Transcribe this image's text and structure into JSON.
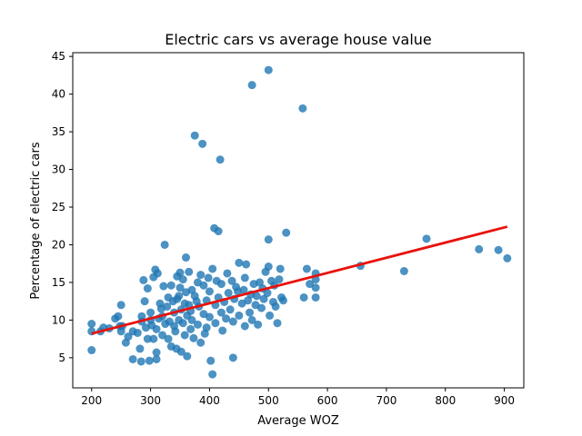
{
  "chart_data": {
    "type": "scatter",
    "title": "Electric cars vs average house value",
    "xlabel": "Average WOZ",
    "ylabel": "Percentage of electric cars",
    "xlim": [
      168,
      933
    ],
    "ylim": [
      1.0,
      45.5
    ],
    "x_ticks": [
      200,
      300,
      400,
      500,
      600,
      700,
      800,
      900
    ],
    "y_ticks": [
      5,
      10,
      15,
      20,
      25,
      30,
      35,
      40,
      45
    ],
    "grid": false,
    "legend": "none",
    "colors": {
      "points": "#1f77b4",
      "trend": "#e8120c"
    },
    "trend_line": {
      "x": [
        200,
        905
      ],
      "y": [
        8.2,
        22.4
      ]
    },
    "points": [
      [
        200,
        8.5
      ],
      [
        200,
        9.5
      ],
      [
        200,
        6.0
      ],
      [
        215,
        8.5
      ],
      [
        220,
        9.0
      ],
      [
        230,
        8.9
      ],
      [
        240,
        10.2
      ],
      [
        245,
        10.5
      ],
      [
        248,
        9.2
      ],
      [
        250,
        12.0
      ],
      [
        250,
        8.5
      ],
      [
        252,
        9.2
      ],
      [
        258,
        7.0
      ],
      [
        262,
        7.8
      ],
      [
        270,
        8.5
      ],
      [
        270,
        4.8
      ],
      [
        278,
        8.3
      ],
      [
        282,
        6.2
      ],
      [
        284,
        4.5
      ],
      [
        285,
        9.8
      ],
      [
        285,
        10.5
      ],
      [
        288,
        15.3
      ],
      [
        290,
        12.5
      ],
      [
        292,
        9.0
      ],
      [
        295,
        7.5
      ],
      [
        295,
        14.2
      ],
      [
        298,
        4.6
      ],
      [
        300,
        10.0
      ],
      [
        300,
        11.0
      ],
      [
        302,
        9.3
      ],
      [
        305,
        15.7
      ],
      [
        305,
        7.5
      ],
      [
        308,
        16.7
      ],
      [
        310,
        5.7
      ],
      [
        310,
        8.8
      ],
      [
        310,
        4.8
      ],
      [
        312,
        16.2
      ],
      [
        314,
        10.2
      ],
      [
        316,
        12.2
      ],
      [
        318,
        11.5
      ],
      [
        320,
        10.5
      ],
      [
        320,
        8.0
      ],
      [
        322,
        14.5
      ],
      [
        324,
        20.0
      ],
      [
        325,
        9.5
      ],
      [
        328,
        11.8
      ],
      [
        330,
        13.0
      ],
      [
        330,
        7.5
      ],
      [
        332,
        9.8
      ],
      [
        335,
        6.5
      ],
      [
        335,
        14.6
      ],
      [
        338,
        12.5
      ],
      [
        340,
        11.0
      ],
      [
        340,
        9.2
      ],
      [
        342,
        8.5
      ],
      [
        344,
        6.2
      ],
      [
        345,
        15.8
      ],
      [
        345,
        12.8
      ],
      [
        348,
        13.2
      ],
      [
        348,
        10.0
      ],
      [
        350,
        16.3
      ],
      [
        350,
        14.3
      ],
      [
        352,
        11.4
      ],
      [
        352,
        5.8
      ],
      [
        355,
        15.4
      ],
      [
        355,
        9.6
      ],
      [
        358,
        12.2
      ],
      [
        358,
        8.0
      ],
      [
        360,
        18.3
      ],
      [
        360,
        13.7
      ],
      [
        362,
        10.6
      ],
      [
        362,
        5.2
      ],
      [
        365,
        16.4
      ],
      [
        365,
        12.0
      ],
      [
        368,
        11.2
      ],
      [
        368,
        8.8
      ],
      [
        370,
        14.0
      ],
      [
        370,
        10.0
      ],
      [
        373,
        7.6
      ],
      [
        375,
        34.5
      ],
      [
        375,
        13.2
      ],
      [
        378,
        12.5
      ],
      [
        380,
        15.0
      ],
      [
        380,
        9.4
      ],
      [
        382,
        11.8
      ],
      [
        385,
        16.0
      ],
      [
        385,
        7.0
      ],
      [
        388,
        33.4
      ],
      [
        390,
        14.6
      ],
      [
        390,
        10.8
      ],
      [
        392,
        8.2
      ],
      [
        395,
        12.6
      ],
      [
        395,
        9.0
      ],
      [
        398,
        15.6
      ],
      [
        400,
        13.8
      ],
      [
        400,
        10.4
      ],
      [
        402,
        4.6
      ],
      [
        405,
        2.8
      ],
      [
        405,
        16.8
      ],
      [
        408,
        22.2
      ],
      [
        410,
        12.0
      ],
      [
        410,
        9.6
      ],
      [
        412,
        15.2
      ],
      [
        415,
        21.8
      ],
      [
        415,
        13.0
      ],
      [
        418,
        31.3
      ],
      [
        420,
        11.0
      ],
      [
        420,
        14.8
      ],
      [
        422,
        8.6
      ],
      [
        425,
        12.4
      ],
      [
        428,
        10.2
      ],
      [
        430,
        16.2
      ],
      [
        432,
        13.6
      ],
      [
        435,
        11.4
      ],
      [
        438,
        15.2
      ],
      [
        440,
        5.0
      ],
      [
        440,
        9.8
      ],
      [
        442,
        12.8
      ],
      [
        445,
        14.4
      ],
      [
        448,
        13.8
      ],
      [
        450,
        17.6
      ],
      [
        450,
        10.6
      ],
      [
        455,
        12.2
      ],
      [
        458,
        14.0
      ],
      [
        460,
        15.6
      ],
      [
        460,
        9.2
      ],
      [
        462,
        17.4
      ],
      [
        465,
        12.6
      ],
      [
        468,
        11.0
      ],
      [
        470,
        13.4
      ],
      [
        472,
        41.2
      ],
      [
        472,
        10.0
      ],
      [
        475,
        14.8
      ],
      [
        478,
        12.0
      ],
      [
        480,
        13.2
      ],
      [
        482,
        9.4
      ],
      [
        485,
        15.0
      ],
      [
        488,
        11.6
      ],
      [
        490,
        14.2
      ],
      [
        492,
        12.8
      ],
      [
        495,
        16.4
      ],
      [
        498,
        13.6
      ],
      [
        500,
        43.2
      ],
      [
        500,
        20.7
      ],
      [
        500,
        17.1
      ],
      [
        502,
        10.6
      ],
      [
        505,
        15.2
      ],
      [
        508,
        12.4
      ],
      [
        510,
        14.6
      ],
      [
        512,
        11.8
      ],
      [
        515,
        9.6
      ],
      [
        518,
        15.4
      ],
      [
        520,
        16.8
      ],
      [
        522,
        13.0
      ],
      [
        525,
        12.6
      ],
      [
        530,
        21.6
      ],
      [
        558,
        38.1
      ],
      [
        560,
        13.0
      ],
      [
        565,
        16.8
      ],
      [
        570,
        14.8
      ],
      [
        580,
        16.2
      ],
      [
        580,
        15.4
      ],
      [
        580,
        14.3
      ],
      [
        580,
        13.0
      ],
      [
        656,
        17.2
      ],
      [
        730,
        16.5
      ],
      [
        768,
        20.8
      ],
      [
        857,
        19.4
      ],
      [
        890,
        19.3
      ],
      [
        905,
        18.2
      ]
    ]
  }
}
